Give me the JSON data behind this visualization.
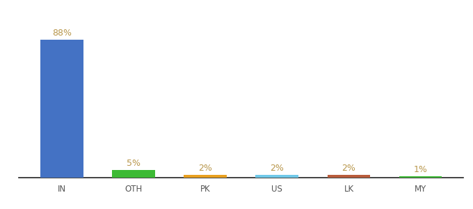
{
  "categories": [
    "IN",
    "OTH",
    "PK",
    "US",
    "LK",
    "MY"
  ],
  "values": [
    88,
    5,
    2,
    2,
    2,
    1
  ],
  "labels": [
    "88%",
    "5%",
    "2%",
    "2%",
    "2%",
    "1%"
  ],
  "bar_colors": [
    "#4472c4",
    "#3dba35",
    "#e8a020",
    "#70c8e8",
    "#b85c3c",
    "#3dba35"
  ],
  "ylim": [
    0,
    100
  ],
  "background_color": "#ffffff",
  "label_color": "#b8964a",
  "label_fontsize": 9,
  "tick_fontsize": 8.5,
  "tick_color": "#555555",
  "bar_width": 0.6
}
